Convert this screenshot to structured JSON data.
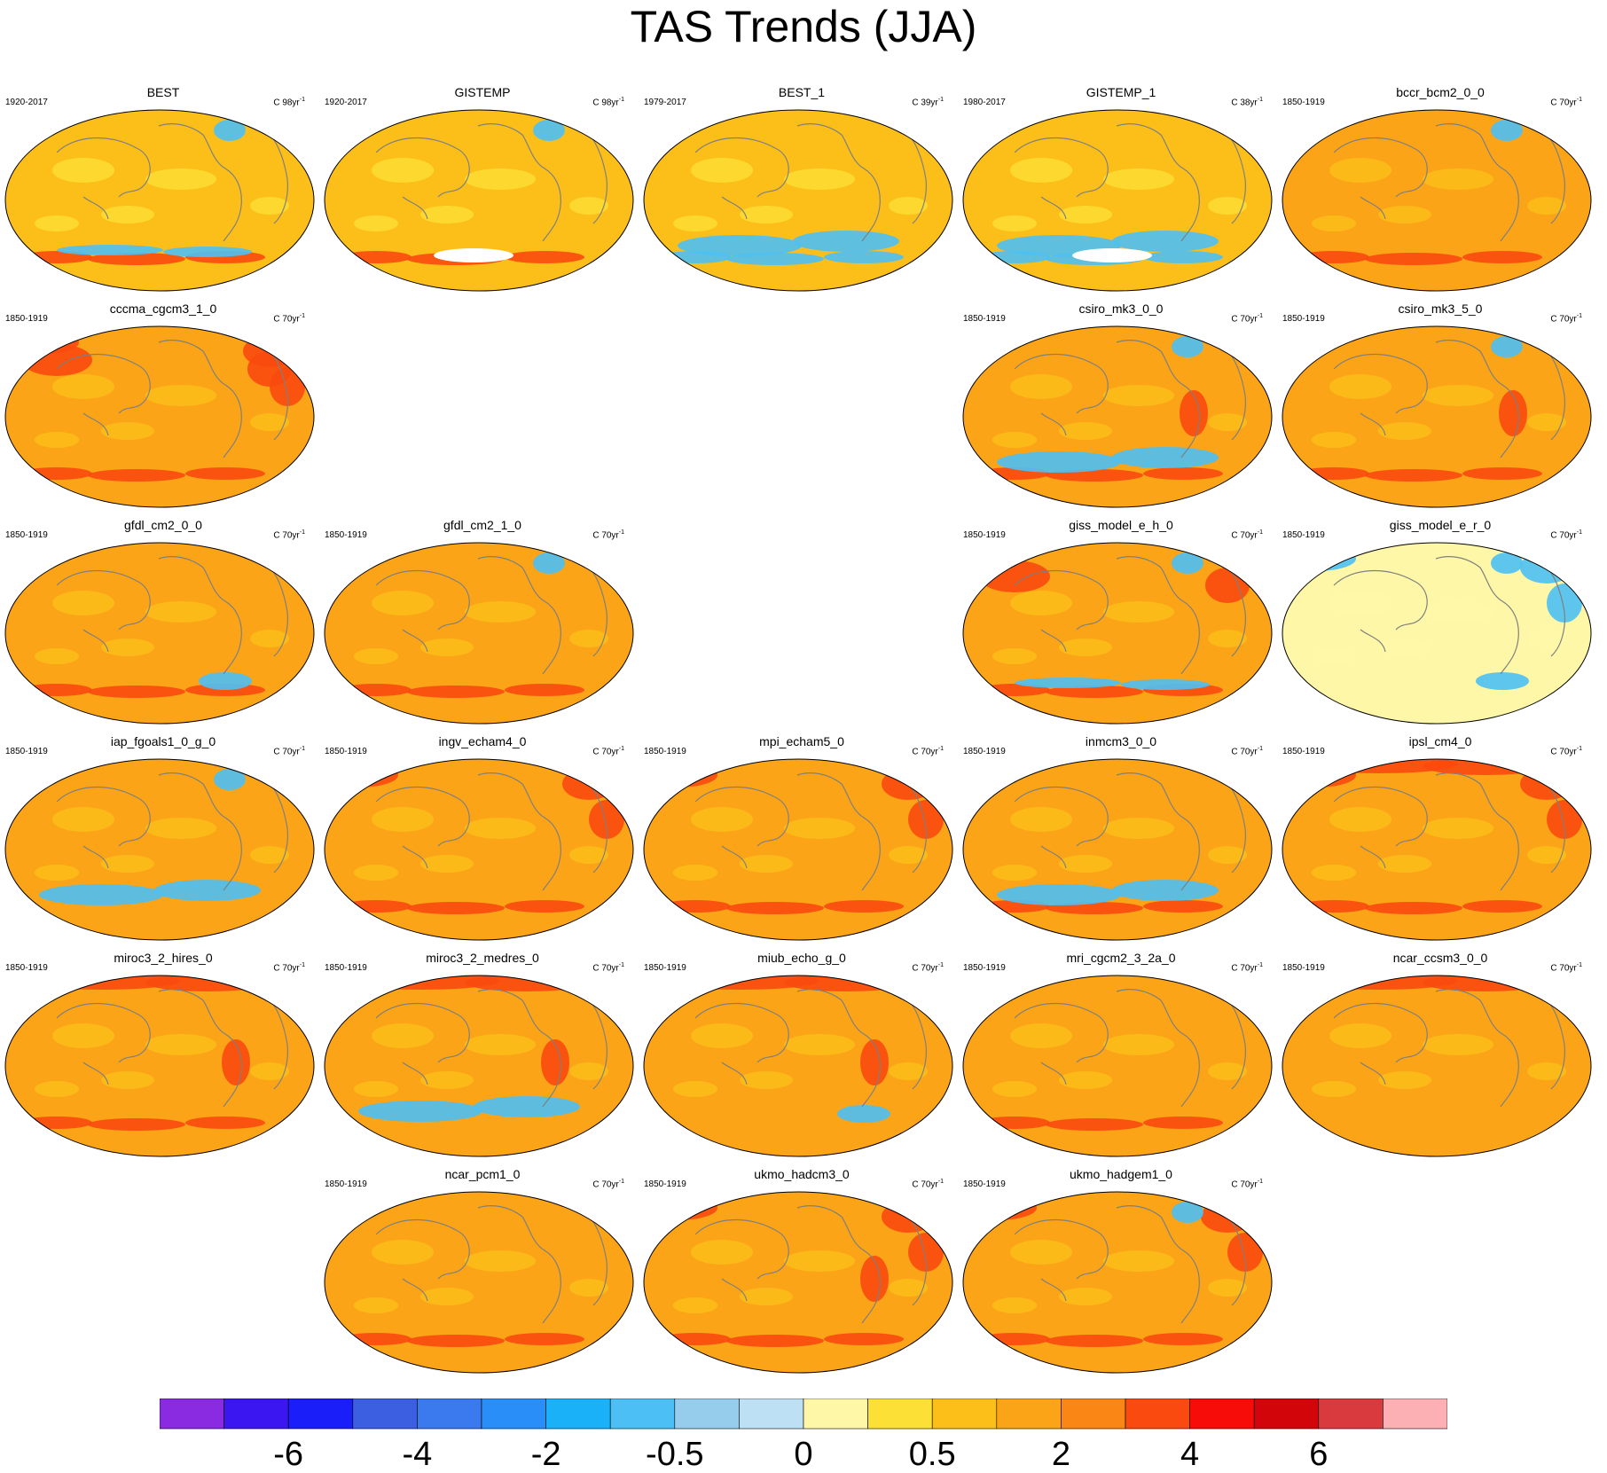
{
  "title": "TAS Trends (JJA)",
  "colors": {
    "ocean_base": "#fba91a",
    "land_outline": "#7f7f7f",
    "palette": [
      "#8a2be2",
      "#3b16f0",
      "#1a1ef8",
      "#3c5ee0",
      "#3a7aee",
      "#2a8ef8",
      "#1ab1f8",
      "#4cc0f4",
      "#96ccec",
      "#bde0f4",
      "#fff7a8",
      "#fde035",
      "#fcbf1a",
      "#fba417",
      "#fa8615",
      "#fa4a0f",
      "#f80c0a",
      "#d2050a",
      "#d83a3e",
      "#fdb0b4"
    ]
  },
  "colorbar": {
    "labels": [
      "-6",
      "-4",
      "-2",
      "-0.5",
      "0",
      "0.5",
      "2",
      "4",
      "6"
    ]
  },
  "chart_data": {
    "type": "heatmap",
    "title": "TAS Trends (JJA)",
    "panels": [
      {
        "name": "BEST",
        "period": "1920-2017",
        "units": "C 98yr",
        "mean_trend_class": "0.5",
        "hot_spots": [
          "antarctic"
        ],
        "cold_spots": [
          "greenland",
          "antarctic-edge"
        ]
      },
      {
        "name": "GISTEMP",
        "period": "1920-2017",
        "units": "C 98yr",
        "mean_trend_class": "0.5",
        "hot_spots": [
          "antarctic"
        ],
        "cold_spots": [
          "greenland"
        ],
        "missing": [
          "antarctic-interior"
        ]
      },
      {
        "name": "BEST_1",
        "period": "1979-2017",
        "units": "C 39yr",
        "mean_trend_class": "0.5",
        "hot_spots": [],
        "cold_spots": [
          "southern-ocean",
          "antarctic"
        ]
      },
      {
        "name": "GISTEMP_1",
        "period": "1980-2017",
        "units": "C 38yr",
        "mean_trend_class": "0.5",
        "hot_spots": [],
        "cold_spots": [
          "southern-ocean",
          "antarctic"
        ],
        "missing": [
          "antarctic-interior"
        ]
      },
      {
        "name": "bccr_bcm2_0_0",
        "period": "1850-1919",
        "units": "C 70yr",
        "mean_trend_class": "2",
        "hot_spots": [
          "antarctic"
        ],
        "cold_spots": [
          "greenland"
        ]
      },
      {
        "name": "cccma_cgcm3_1_0",
        "period": "1850-1919",
        "units": "C 70yr",
        "mean_trend_class": "2",
        "hot_spots": [
          "antarctic",
          "north-pacific",
          "eurasia"
        ],
        "cold_spots": []
      },
      {
        "name": "csiro_mk3_0_0",
        "period": "1850-1919",
        "units": "C 70yr",
        "mean_trend_class": "2",
        "hot_spots": [
          "antarctic",
          "south-america"
        ],
        "cold_spots": [
          "southern-ocean",
          "greenland"
        ]
      },
      {
        "name": "csiro_mk3_5_0",
        "period": "1850-1919",
        "units": "C 70yr",
        "mean_trend_class": "2",
        "hot_spots": [
          "antarctic",
          "south-america"
        ],
        "cold_spots": [
          "greenland"
        ]
      },
      {
        "name": "gfdl_cm2_0_0",
        "period": "1850-1919",
        "units": "C 70yr",
        "mean_trend_class": "2",
        "hot_spots": [
          "antarctic"
        ],
        "cold_spots": [
          "weddell-sea"
        ]
      },
      {
        "name": "gfdl_cm2_1_0",
        "period": "1850-1919",
        "units": "C 70yr",
        "mean_trend_class": "2",
        "hot_spots": [
          "antarctic"
        ],
        "cold_spots": [
          "greenland"
        ]
      },
      {
        "name": "giss_model_e_h_0",
        "period": "1850-1919",
        "units": "C 70yr",
        "mean_trend_class": "2",
        "hot_spots": [
          "north-pacific",
          "antarctic"
        ],
        "cold_spots": [
          "greenland",
          "antarctic-edge"
        ]
      },
      {
        "name": "giss_model_e_r_0",
        "period": "1850-1919",
        "units": "C 70yr",
        "mean_trend_class": "0",
        "hot_spots": [],
        "cold_spots": [
          "greenland",
          "eurasia",
          "weddell-sea"
        ]
      },
      {
        "name": "iap_fgoals1_0_g_0",
        "period": "1850-1919",
        "units": "C 70yr",
        "mean_trend_class": "2",
        "hot_spots": [],
        "cold_spots": [
          "greenland",
          "southern-ocean"
        ]
      },
      {
        "name": "ingv_echam4_0",
        "period": "1850-1919",
        "units": "C 70yr",
        "mean_trend_class": "2",
        "hot_spots": [
          "eurasia",
          "antarctic"
        ],
        "cold_spots": []
      },
      {
        "name": "mpi_echam5_0",
        "period": "1850-1919",
        "units": "C 70yr",
        "mean_trend_class": "2",
        "hot_spots": [
          "eurasia",
          "antarctic"
        ],
        "cold_spots": []
      },
      {
        "name": "inmcm3_0_0",
        "period": "1850-1919",
        "units": "C 70yr",
        "mean_trend_class": "2",
        "hot_spots": [
          "antarctic"
        ],
        "cold_spots": [
          "southern-ocean"
        ]
      },
      {
        "name": "ipsl_cm4_0",
        "period": "1850-1919",
        "units": "C 70yr",
        "mean_trend_class": "2",
        "hot_spots": [
          "arctic",
          "eurasia",
          "antarctic"
        ],
        "cold_spots": []
      },
      {
        "name": "miroc3_2_hires_0",
        "period": "1850-1919",
        "units": "C 70yr",
        "mean_trend_class": "2",
        "hot_spots": [
          "arctic",
          "antarctic",
          "south-america"
        ],
        "cold_spots": []
      },
      {
        "name": "miroc3_2_medres_0",
        "period": "1850-1919",
        "units": "C 70yr",
        "mean_trend_class": "2",
        "hot_spots": [
          "arctic",
          "south-america"
        ],
        "cold_spots": [
          "southern-ocean"
        ]
      },
      {
        "name": "miub_echo_g_0",
        "period": "1850-1919",
        "units": "C 70yr",
        "mean_trend_class": "2",
        "hot_spots": [
          "arctic",
          "south-america"
        ],
        "cold_spots": [
          "weddell-sea"
        ]
      },
      {
        "name": "mri_cgcm2_3_2a_0",
        "period": "1850-1919",
        "units": "C 70yr",
        "mean_trend_class": "2",
        "hot_spots": [
          "antarctic"
        ],
        "cold_spots": []
      },
      {
        "name": "ncar_ccsm3_0_0",
        "period": "1850-1919",
        "units": "C 70yr",
        "mean_trend_class": "2",
        "hot_spots": [
          "arctic"
        ],
        "cold_spots": []
      },
      {
        "name": "ncar_pcm1_0",
        "period": "1850-1919",
        "units": "C 70yr",
        "mean_trend_class": "2",
        "hot_spots": [
          "antarctic"
        ],
        "cold_spots": []
      },
      {
        "name": "ukmo_hadcm3_0",
        "period": "1850-1919",
        "units": "C 70yr",
        "mean_trend_class": "2",
        "hot_spots": [
          "eurasia",
          "south-america",
          "antarctic"
        ],
        "cold_spots": []
      },
      {
        "name": "ukmo_hadgem1_0",
        "period": "1850-1919",
        "units": "C 70yr",
        "mean_trend_class": "2",
        "hot_spots": [
          "eurasia",
          "antarctic"
        ],
        "cold_spots": [
          "greenland"
        ]
      }
    ]
  }
}
